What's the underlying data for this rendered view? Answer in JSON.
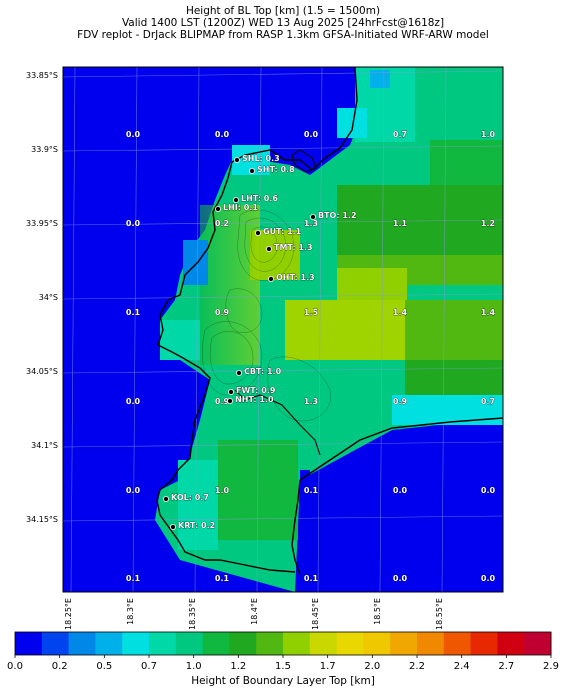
{
  "title": {
    "line1": "Height of BL Top [km] (1.5 = 1500m)",
    "line2": "Valid 1400 LST (1200Z) WED 13 Aug 2025 [24hrFcst@1618z]",
    "line3": "FDV replot - DrJack BLIPMAP from RASP 1.3km GFSA-Initiated WRF-ARW model"
  },
  "axes": {
    "lat_labels": [
      "33.85°S",
      "33.9°S",
      "33.95°S",
      "34°S",
      "34.05°S",
      "34.1°S",
      "34.15°S"
    ],
    "lon_labels": [
      "18.25°E",
      "18.3°E",
      "18.35°E",
      "18.4°E",
      "18.45°E",
      "18.5°E",
      "18.55°E"
    ]
  },
  "grid_values": [
    [
      "0.0",
      "0.0",
      "0.0",
      "0.7",
      "1.0"
    ],
    [
      "0.0",
      "0.2",
      "1.3",
      "1.1",
      "1.2"
    ],
    [
      "0.1",
      "0.9",
      "1.5",
      "1.4",
      "1.4"
    ],
    [
      "0.0",
      "0.9",
      "1.3",
      "0.9",
      "0.7"
    ],
    [
      "0.0",
      "1.0",
      "0.1",
      "0.0",
      "0.0"
    ],
    [
      "0.1",
      "0.1",
      "0.1",
      "0.0",
      "0.0"
    ]
  ],
  "sites": [
    {
      "label": "SHL: 0.3"
    },
    {
      "label": "SHT: 0.8"
    },
    {
      "label": "LHT: 0.6"
    },
    {
      "label": "LHI: 0.1"
    },
    {
      "label": "BTO: 1.2"
    },
    {
      "label": "GUT: 1.1"
    },
    {
      "label": "TMT: 1.3"
    },
    {
      "label": "OHT: 1.3"
    },
    {
      "label": "CBT: 1.0"
    },
    {
      "label": "FWT: 0.9"
    },
    {
      "label": "NHT: 1.0"
    },
    {
      "label": "KOL: 0.7"
    },
    {
      "label": "KRT: 0.2"
    }
  ],
  "colorbar": {
    "title": "Height of Boundary Layer Top [km]",
    "tick_labels": [
      "0.0",
      "0.2",
      "0.5",
      "0.7",
      "1.0",
      "1.2",
      "1.5",
      "1.7",
      "2.0",
      "2.2",
      "2.4",
      "2.7",
      "2.9"
    ],
    "colors": [
      "#0000ee",
      "#0044f0",
      "#0088e8",
      "#00b0e8",
      "#00e0e0",
      "#00d8a8",
      "#00c880",
      "#10b840",
      "#20a820",
      "#50b810",
      "#90d000",
      "#c8d800",
      "#e8d800",
      "#f0c800",
      "#f0a800",
      "#f08800",
      "#f05800",
      "#e82800",
      "#d00010",
      "#c00030"
    ]
  }
}
